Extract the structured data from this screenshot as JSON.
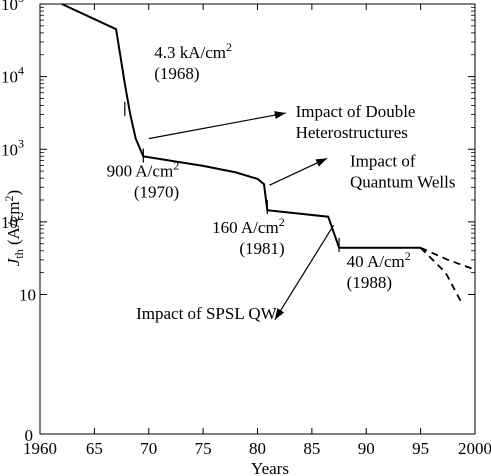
{
  "chart_data": {
    "type": "line",
    "xlabel": "Years",
    "ylabel_main": "J",
    "ylabel_sub": "th",
    "ylabel_unit": " (A/cm",
    "ylabel_sup": "2",
    "ylabel_close": ")",
    "xlim": [
      1960,
      2000
    ],
    "x_ticks": [
      {
        "value": 1960,
        "label": "1960"
      },
      {
        "value": 1965,
        "label": "65"
      },
      {
        "value": 1970,
        "label": "70"
      },
      {
        "value": 1975,
        "label": "75"
      },
      {
        "value": 1980,
        "label": "80"
      },
      {
        "value": 1985,
        "label": "85"
      },
      {
        "value": 1990,
        "label": "90"
      },
      {
        "value": 1995,
        "label": "95"
      },
      {
        "value": 2000,
        "label": "2000"
      }
    ],
    "y_scale": "log",
    "y_ticks": [
      {
        "value": 10,
        "label": "10",
        "exp": ""
      },
      {
        "value": 100,
        "label": "10",
        "exp": "2"
      },
      {
        "value": 1000,
        "label": "10",
        "exp": "3"
      },
      {
        "value": 10000,
        "label": "10",
        "exp": "4"
      },
      {
        "value": 100000,
        "label": "10",
        "exp": "5"
      }
    ],
    "y_bottom_label": "0",
    "series": [
      {
        "style": "solid",
        "points": [
          {
            "x": 1962.0,
            "y": 100000
          },
          {
            "x": 1967.0,
            "y": 45000
          },
          {
            "x": 1967.8,
            "y": 8000
          },
          {
            "x": 1968.3,
            "y": 3000
          },
          {
            "x": 1968.8,
            "y": 1400
          },
          {
            "x": 1969.5,
            "y": 800
          },
          {
            "x": 1975.0,
            "y": 590
          },
          {
            "x": 1978.0,
            "y": 480
          },
          {
            "x": 1980.0,
            "y": 390
          },
          {
            "x": 1980.6,
            "y": 330
          },
          {
            "x": 1980.9,
            "y": 145
          },
          {
            "x": 1986.5,
            "y": 118
          },
          {
            "x": 1987.5,
            "y": 44
          },
          {
            "x": 1995.0,
            "y": 44
          }
        ]
      },
      {
        "style": "dashed",
        "points": [
          {
            "x": 1995.0,
            "y": 44
          },
          {
            "x": 1997.5,
            "y": 30
          },
          {
            "x": 2000.0,
            "y": 22
          }
        ]
      },
      {
        "style": "dashed",
        "points": [
          {
            "x": 1995.0,
            "y": 44
          },
          {
            "x": 1997.3,
            "y": 20
          },
          {
            "x": 1998.7,
            "y": 8
          }
        ]
      }
    ],
    "markers": [
      {
        "x": 1967.8,
        "y": 3600
      },
      {
        "x": 1969.5,
        "y": 820
      },
      {
        "x": 1980.9,
        "y": 160
      },
      {
        "x": 1987.5,
        "y": 48
      }
    ],
    "annotations": [
      {
        "lines": [
          {
            "text": "4.3 kA/cm",
            "sup": "2"
          },
          {
            "text": "(1968)",
            "sup": ""
          }
        ],
        "anchor": "start",
        "x": 1970.5,
        "y": 18000
      },
      {
        "lines": [
          {
            "text": "900 A/cm",
            "sup": "2"
          },
          {
            "text": "(1970)",
            "sup": ""
          }
        ],
        "anchor": "end",
        "x": 1972.8,
        "y": 420
      },
      {
        "lines": [
          {
            "text": "160 A/cm",
            "sup": "2"
          },
          {
            "text": "(1981)",
            "sup": ""
          }
        ],
        "anchor": "end",
        "x": 1982.5,
        "y": 70
      },
      {
        "lines": [
          {
            "text": "40 A/cm",
            "sup": "2"
          },
          {
            "text": "(1988)",
            "sup": ""
          }
        ],
        "anchor": "start",
        "x": 1988.2,
        "y": 24
      },
      {
        "lines": [
          {
            "text": "Impact of Double",
            "sup": ""
          },
          {
            "text": "Heterostructures",
            "sup": ""
          }
        ],
        "anchor": "start",
        "x": 1983.5,
        "y": 2800
      },
      {
        "lines": [
          {
            "text": "Impact of",
            "sup": ""
          },
          {
            "text": "Quantum Wells",
            "sup": ""
          }
        ],
        "anchor": "start",
        "x": 1988.5,
        "y": 580
      },
      {
        "lines": [
          {
            "text": "Impact of  SPSL QW",
            "sup": ""
          }
        ],
        "anchor": "middle",
        "x": 1975.3,
        "y": 4.6
      }
    ],
    "arrows": [
      {
        "from": {
          "x": 1970.0,
          "y": 1400
        },
        "to": {
          "x": 1982.6,
          "y": 3150
        }
      },
      {
        "from": {
          "x": 1981.1,
          "y": 320
        },
        "to": {
          "x": 1986.4,
          "y": 750
        }
      },
      {
        "from": {
          "x": 1987.0,
          "y": 90
        },
        "to": {
          "x": 1981.6,
          "y": 4.5
        }
      }
    ]
  }
}
